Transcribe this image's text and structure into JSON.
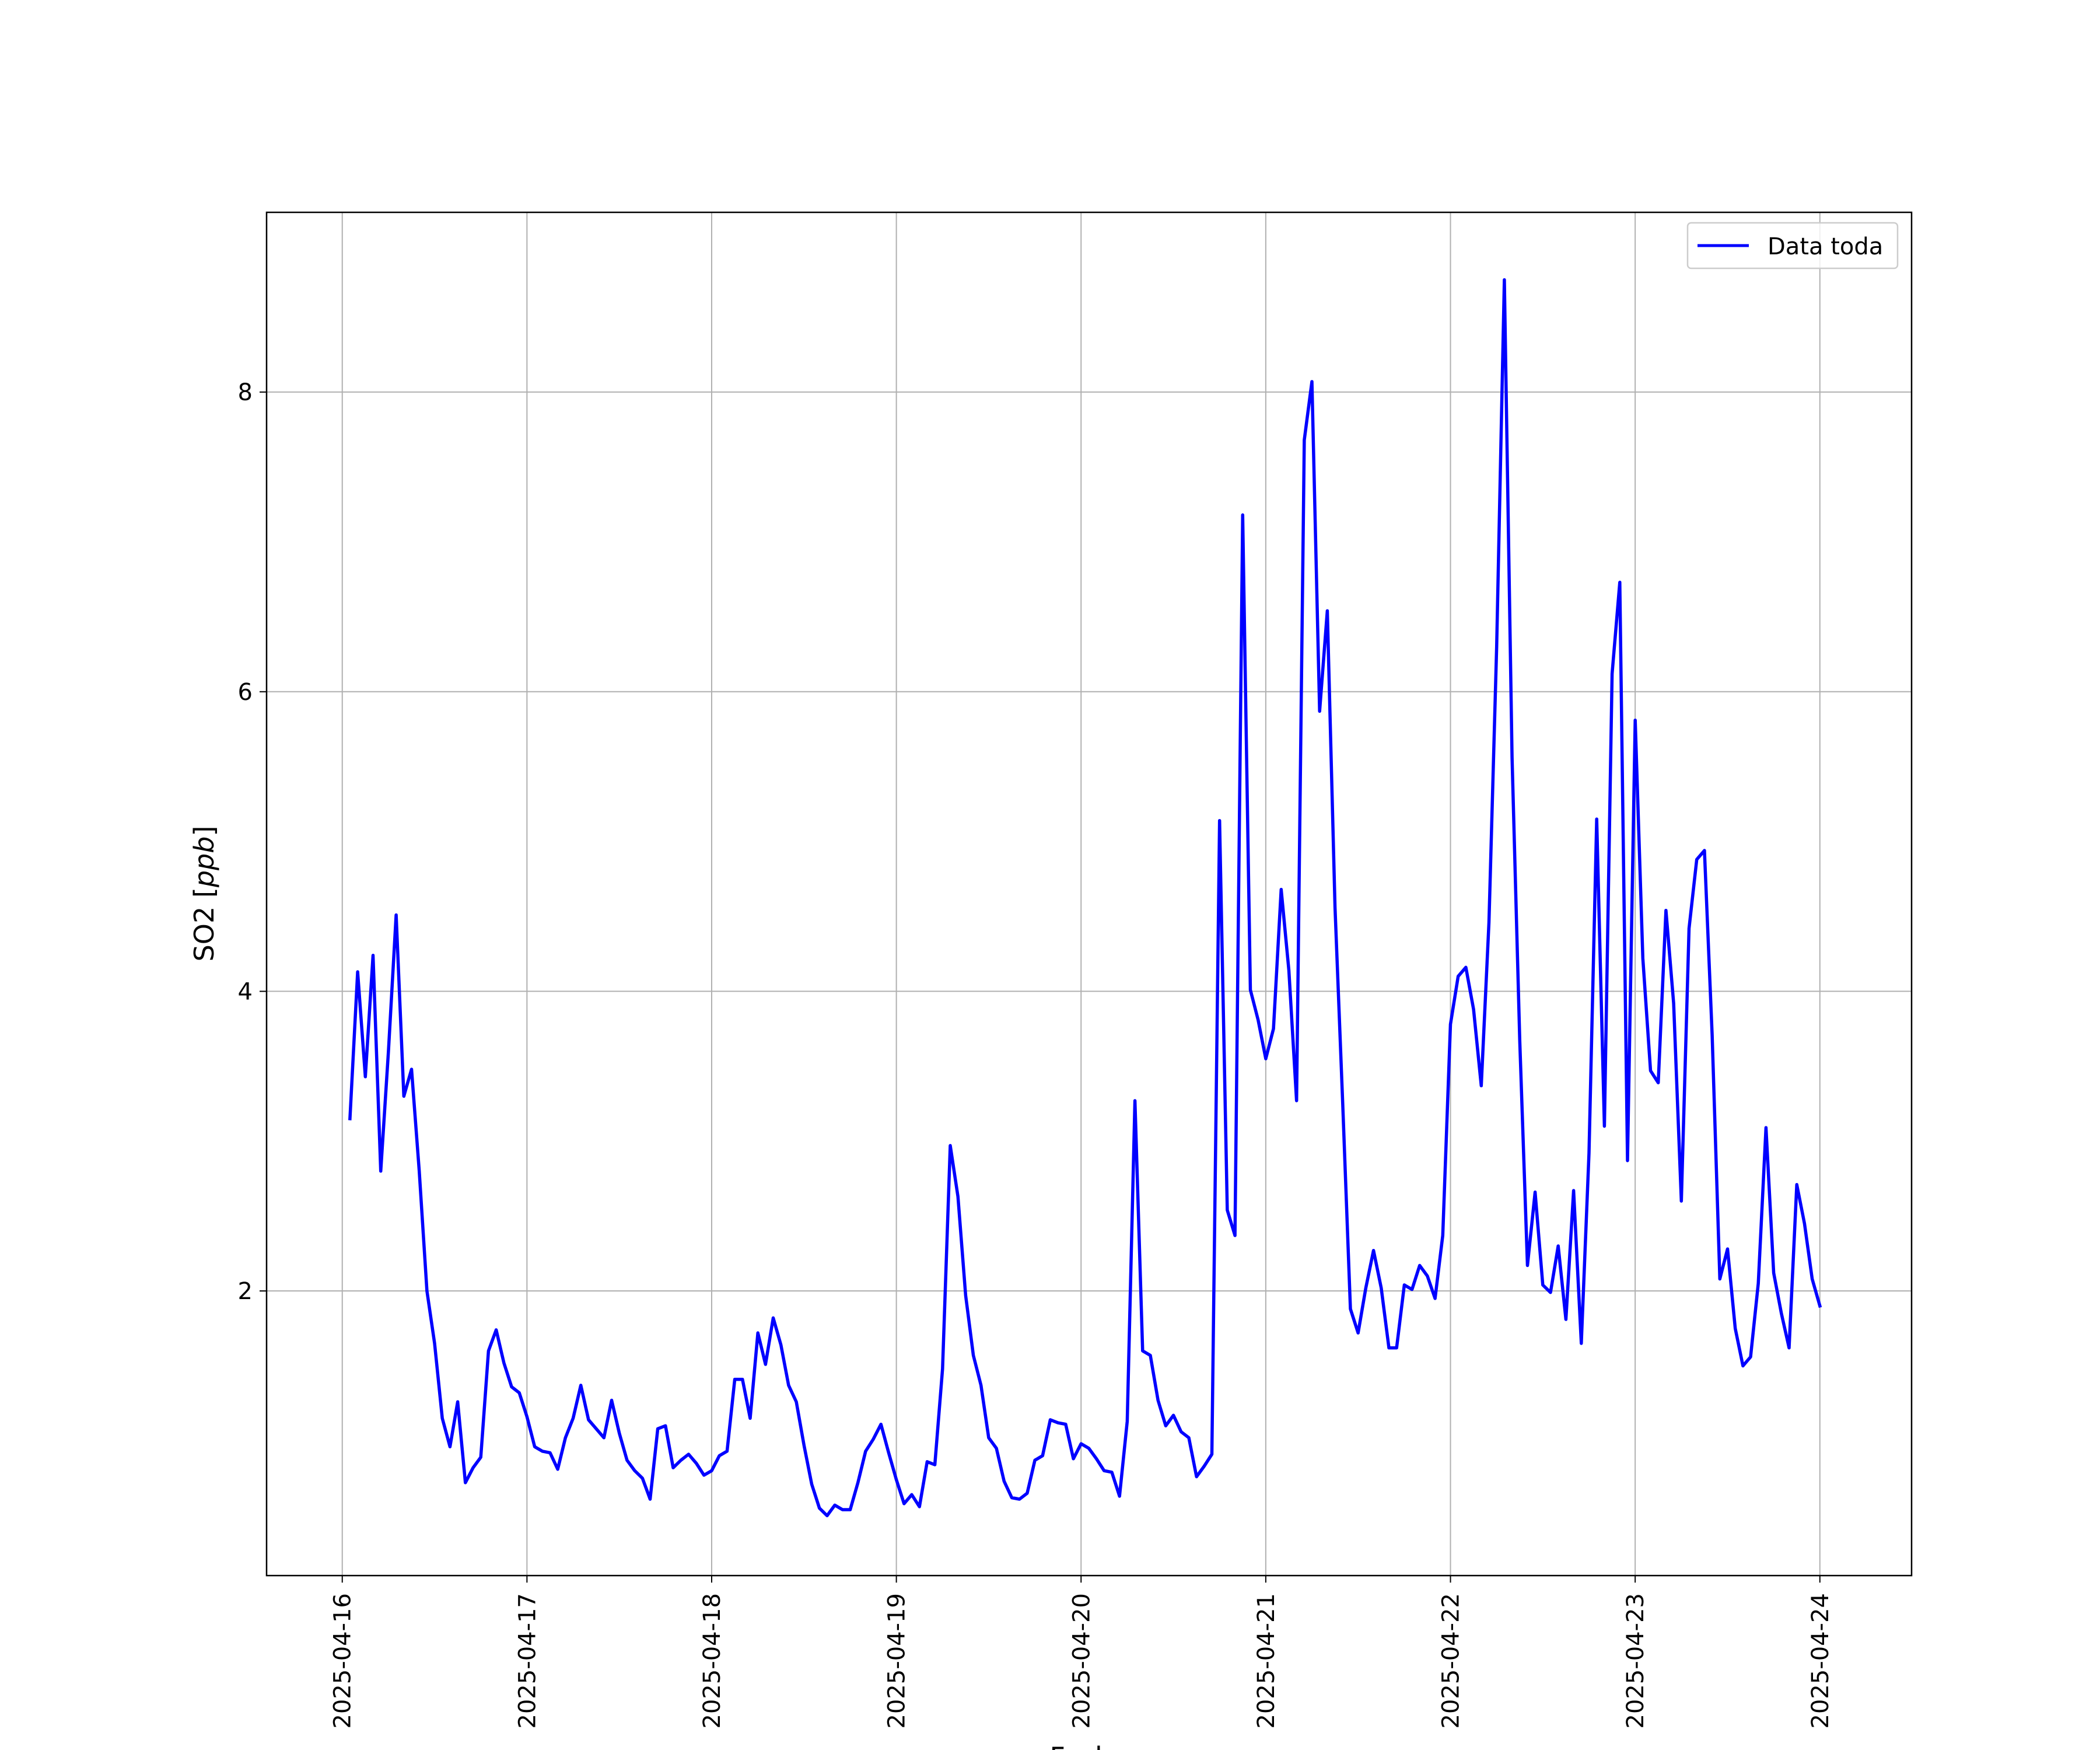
{
  "chart_data": {
    "type": "line",
    "xlabel": "Fecha",
    "ylabel": "SO2 [ppb]",
    "ylabel_text": "SO2",
    "ylabel_unit": "ppb",
    "x_tick_labels": [
      "2025-04-16",
      "2025-04-17",
      "2025-04-18",
      "2025-04-19",
      "2025-04-20",
      "2025-04-21",
      "2025-04-22",
      "2025-04-23",
      "2025-04-24"
    ],
    "y_tick_labels": [
      "2",
      "4",
      "6",
      "8"
    ],
    "y_ticks": [
      2,
      4,
      6,
      8
    ],
    "xlim": [
      "2025-04-15 14:10",
      "2025-04-24 11:55"
    ],
    "ylim": [
      0.1,
      9.2
    ],
    "grid": true,
    "legend_position": "top-right",
    "series": [
      {
        "name": "Data toda",
        "color": "#0000ff",
        "x_start": "2025-04-16 01:00",
        "x_step_hours": 1,
        "values": [
          3.15,
          4.13,
          3.43,
          4.24,
          2.8,
          3.6,
          4.51,
          3.3,
          3.48,
          2.8,
          2.0,
          1.65,
          1.15,
          0.96,
          1.26,
          0.72,
          0.82,
          0.89,
          1.6,
          1.74,
          1.52,
          1.36,
          1.32,
          1.16,
          0.96,
          0.93,
          0.92,
          0.81,
          1.02,
          1.15,
          1.37,
          1.14,
          1.08,
          1.02,
          1.27,
          1.05,
          0.87,
          0.8,
          0.75,
          0.61,
          1.08,
          1.1,
          0.82,
          0.87,
          0.91,
          0.85,
          0.77,
          0.8,
          0.9,
          0.93,
          1.41,
          1.41,
          1.15,
          1.72,
          1.51,
          1.82,
          1.64,
          1.37,
          1.26,
          0.97,
          0.71,
          0.55,
          0.5,
          0.57,
          0.54,
          0.54,
          0.72,
          0.93,
          1.01,
          1.11,
          0.92,
          0.74,
          0.58,
          0.64,
          0.56,
          0.86,
          0.84,
          1.48,
          2.97,
          2.63,
          1.97,
          1.57,
          1.37,
          1.02,
          0.95,
          0.73,
          0.62,
          0.61,
          0.65,
          0.87,
          0.9,
          1.14,
          1.12,
          1.11,
          0.88,
          0.98,
          0.95,
          0.88,
          0.8,
          0.79,
          0.63,
          1.13,
          3.27,
          1.6,
          1.57,
          1.27,
          1.1,
          1.17,
          1.06,
          1.02,
          0.76,
          0.83,
          0.91,
          5.14,
          2.54,
          2.37,
          7.18,
          4.01,
          3.81,
          3.55,
          3.75,
          4.68,
          4.14,
          3.27,
          7.68,
          8.07,
          5.87,
          6.54,
          4.56,
          3.25,
          1.88,
          1.72,
          2.02,
          2.27,
          2.02,
          1.62,
          1.62,
          2.04,
          2.01,
          2.17,
          2.1,
          1.95,
          2.37,
          3.78,
          4.1,
          4.16,
          3.88,
          3.37,
          4.46,
          6.3,
          8.75,
          5.56,
          3.67,
          2.17,
          2.66,
          2.04,
          1.99,
          2.3,
          1.81,
          2.67,
          1.65,
          2.92,
          5.15,
          3.1,
          6.12,
          6.73,
          2.87,
          5.81,
          4.22,
          3.47,
          3.39,
          4.54,
          3.92,
          2.6,
          4.42,
          4.88,
          4.94,
          3.71,
          2.08,
          2.28,
          1.75,
          1.5,
          1.56,
          2.05,
          3.09,
          2.12,
          1.85,
          1.62,
          2.71,
          2.45,
          2.08,
          1.9
        ]
      }
    ]
  }
}
